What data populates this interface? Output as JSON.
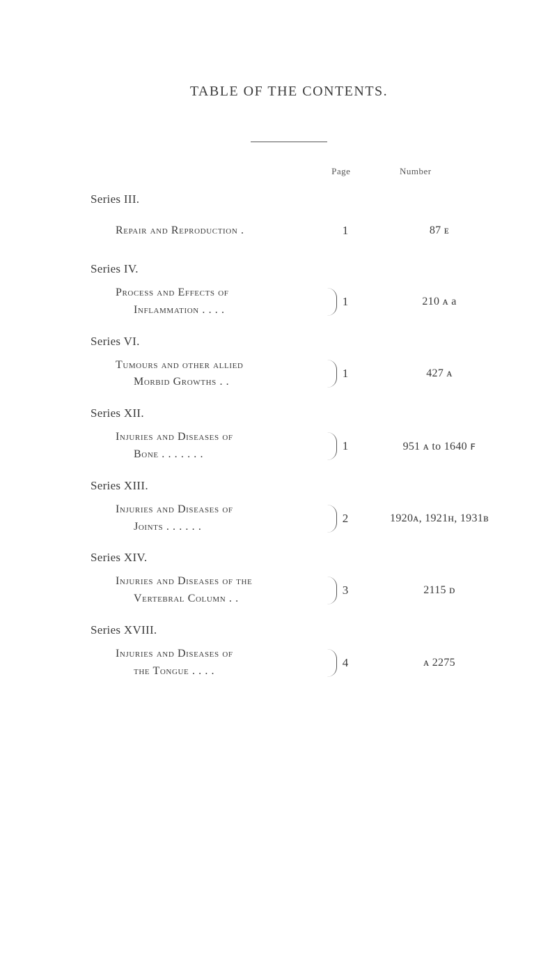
{
  "title": "TABLE OF THE CONTENTS.",
  "columns": {
    "page": "Page",
    "number": "Number"
  },
  "series": [
    {
      "label": "Series III.",
      "entryLine1": "Repair and Reproduction   .",
      "entryLine2": "",
      "brace": false,
      "pageNum": "1",
      "numberText": "87 ᴇ"
    },
    {
      "label": "Series IV.",
      "entryLine1": "Process  and  Effects  of",
      "entryLine2": "Inflammation .   .   .   .",
      "brace": true,
      "pageNum": "1",
      "numberText": "210 ᴀ a"
    },
    {
      "label": "Series VI.",
      "entryLine1": "Tumours and other allied",
      "entryLine2": "Morbid Growths    .    .",
      "brace": true,
      "pageNum": "1",
      "numberText": "427 ᴀ"
    },
    {
      "label": "Series XII.",
      "entryLine1": "Injuries  and  Diseases  of",
      "entryLine2": "Bone .   .   .   .   .   .   .",
      "brace": true,
      "pageNum": "1",
      "numberText": "951 ᴀ to 1640 ꜰ"
    },
    {
      "label": "Series XIII.",
      "entryLine1": "Injuries  and  Diseases  of",
      "entryLine2": "Joints   .   .   .   .   .   .",
      "brace": true,
      "pageNum": "2",
      "numberText": "1920ᴀ, 1921ʜ, 1931ʙ"
    },
    {
      "label": "Series XIV.",
      "entryLine1": "Injuries and Diseases of the",
      "entryLine2": "Vertebral Column .   .",
      "brace": true,
      "pageNum": "3",
      "numberText": "2115 ᴅ"
    },
    {
      "label": "Series XVIII.",
      "entryLine1": "Injuries  and  Diseases  of",
      "entryLine2": "the Tongue   .    .    .    .",
      "brace": true,
      "pageNum": "4",
      "numberText": "ᴀ 2275"
    }
  ]
}
